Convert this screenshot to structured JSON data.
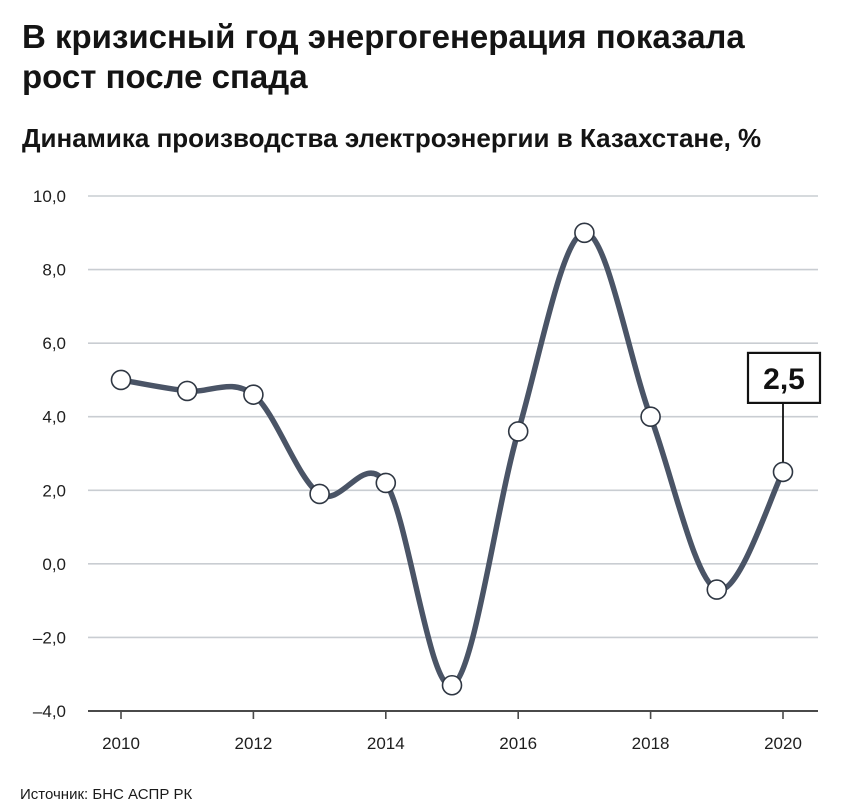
{
  "chart_data": {
    "type": "line",
    "title": "В кризисный год энергогенерация показала рост после спада",
    "subtitle": "Динамика производства электроэнергии в Казахстане, %",
    "source": "Источник: БНС АСПР РК",
    "x": [
      2010,
      2011,
      2012,
      2013,
      2014,
      2015,
      2016,
      2017,
      2018,
      2019,
      2020
    ],
    "values": [
      5.0,
      4.7,
      4.6,
      1.9,
      2.2,
      -3.3,
      3.6,
      9.0,
      4.0,
      -0.7,
      2.5
    ],
    "xlim": [
      2010,
      2020
    ],
    "ylim": [
      -4,
      10
    ],
    "grid": true,
    "y_ticks": [
      {
        "value": 10,
        "label": "10,0"
      },
      {
        "value": 8,
        "label": "8,0"
      },
      {
        "value": 6,
        "label": "6,0"
      },
      {
        "value": 4,
        "label": "4,0"
      },
      {
        "value": 2,
        "label": "2,0"
      },
      {
        "value": 0,
        "label": "0,0"
      },
      {
        "value": -2,
        "label": "–2,0"
      },
      {
        "value": -4,
        "label": "–4,0"
      }
    ],
    "x_ticks": [
      {
        "value": 2010,
        "label": "2010"
      },
      {
        "value": 2012,
        "label": "2012"
      },
      {
        "value": 2014,
        "label": "2014"
      },
      {
        "value": 2016,
        "label": "2016"
      },
      {
        "value": 2018,
        "label": "2018"
      },
      {
        "value": 2020,
        "label": "2020"
      }
    ],
    "annotations": [
      {
        "year": 2020,
        "value": 2.5,
        "text": "2,5"
      }
    ],
    "colors": {
      "line": "#4a5466",
      "gridline": "#c9cdd2",
      "axis": "#4a4a4a",
      "marker_fill": "#ffffff",
      "marker_stroke": "#2f3743",
      "tick_text": "#1e1e1e",
      "annotation": "#111111"
    }
  }
}
